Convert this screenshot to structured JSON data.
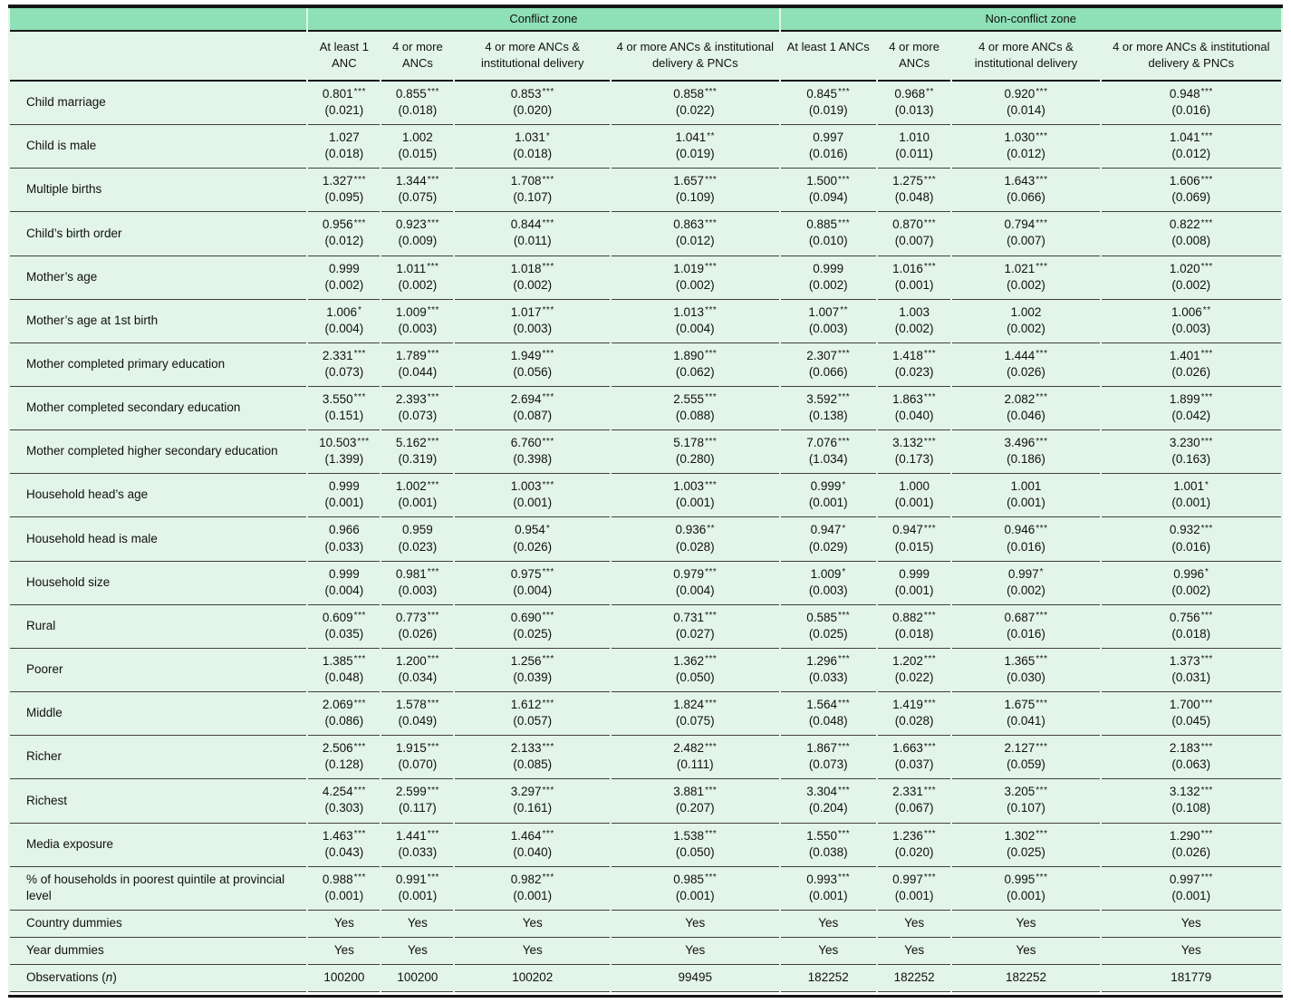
{
  "table": {
    "colors": {
      "band": "#8ee0b6",
      "cell": "#e3f4e9"
    },
    "zone_headers": [
      {
        "label": "Conflict zone",
        "span": 4
      },
      {
        "label": "Non-conflict zone",
        "span": 4
      }
    ],
    "column_headers": [
      "At least 1 ANC",
      "4 or more ANCs",
      "4 or more ANCs & institutional delivery",
      "4 or more ANCs & institutional delivery & PNCs",
      "At least 1 ANCs",
      "4 or more ANCs",
      "4 or more ANCs & institutional delivery",
      "4 or more ANCs & institutional delivery & PNCs"
    ],
    "rows": [
      {
        "label": "Child marriage",
        "cells": [
          {
            "v": "0.801***",
            "se": "(0.021)"
          },
          {
            "v": "0.855***",
            "se": "(0.018)"
          },
          {
            "v": "0.853***",
            "se": "(0.020)"
          },
          {
            "v": "0.858***",
            "se": "(0.022)"
          },
          {
            "v": "0.845***",
            "se": "(0.019)"
          },
          {
            "v": "0.968**",
            "se": "(0.013)"
          },
          {
            "v": "0.920***",
            "se": "(0.014)"
          },
          {
            "v": "0.948***",
            "se": "(0.016)"
          }
        ]
      },
      {
        "label": "Child is male",
        "cells": [
          {
            "v": "1.027",
            "se": "(0.018)"
          },
          {
            "v": "1.002",
            "se": "(0.015)"
          },
          {
            "v": "1.031*",
            "se": "(0.018)"
          },
          {
            "v": "1.041**",
            "se": "(0.019)"
          },
          {
            "v": "0.997",
            "se": "(0.016)"
          },
          {
            "v": "1.010",
            "se": "(0.011)"
          },
          {
            "v": "1.030***",
            "se": "(0.012)"
          },
          {
            "v": "1.041***",
            "se": "(0.012)"
          }
        ]
      },
      {
        "label": "Multiple births",
        "cells": [
          {
            "v": "1.327***",
            "se": "(0.095)"
          },
          {
            "v": "1.344***",
            "se": "(0.075)"
          },
          {
            "v": "1.708***",
            "se": "(0.107)"
          },
          {
            "v": "1.657***",
            "se": "(0.109)"
          },
          {
            "v": "1.500***",
            "se": "(0.094)"
          },
          {
            "v": "1.275***",
            "se": "(0.048)"
          },
          {
            "v": "1.643***",
            "se": "(0.066)"
          },
          {
            "v": "1.606***",
            "se": "(0.069)"
          }
        ]
      },
      {
        "label": "Child’s birth order",
        "cells": [
          {
            "v": "0.956***",
            "se": "(0.012)"
          },
          {
            "v": "0.923***",
            "se": "(0.009)"
          },
          {
            "v": "0.844***",
            "se": "(0.011)"
          },
          {
            "v": "0.863***",
            "se": "(0.012)"
          },
          {
            "v": "0.885***",
            "se": "(0.010)"
          },
          {
            "v": "0.870***",
            "se": "(0.007)"
          },
          {
            "v": "0.794***",
            "se": "(0.007)"
          },
          {
            "v": "0.822***",
            "se": "(0.008)"
          }
        ]
      },
      {
        "label": "Mother’s age",
        "cells": [
          {
            "v": "0.999",
            "se": "(0.002)"
          },
          {
            "v": "1.011***",
            "se": "(0.002)"
          },
          {
            "v": "1.018***",
            "se": "(0.002)"
          },
          {
            "v": "1.019***",
            "se": "(0.002)"
          },
          {
            "v": "0.999",
            "se": "(0.002)"
          },
          {
            "v": "1.016***",
            "se": "(0.001)"
          },
          {
            "v": "1.021***",
            "se": "(0.002)"
          },
          {
            "v": "1.020***",
            "se": "(0.002)"
          }
        ]
      },
      {
        "label": "Mother’s age at 1st birth",
        "cells": [
          {
            "v": "1.006*",
            "se": "(0.004)"
          },
          {
            "v": "1.009***",
            "se": "(0.003)"
          },
          {
            "v": "1.017***",
            "se": "(0.003)"
          },
          {
            "v": "1.013***",
            "se": "(0.004)"
          },
          {
            "v": "1.007**",
            "se": "(0.003)"
          },
          {
            "v": "1.003",
            "se": "(0.002)"
          },
          {
            "v": "1.002",
            "se": "(0.002)"
          },
          {
            "v": "1.006**",
            "se": "(0.003)"
          }
        ]
      },
      {
        "label": "Mother completed primary education",
        "cells": [
          {
            "v": "2.331***",
            "se": "(0.073)"
          },
          {
            "v": "1.789***",
            "se": "(0.044)"
          },
          {
            "v": "1.949***",
            "se": "(0.056)"
          },
          {
            "v": "1.890***",
            "se": "(0.062)"
          },
          {
            "v": "2.307***",
            "se": "(0.066)"
          },
          {
            "v": "1.418***",
            "se": "(0.023)"
          },
          {
            "v": "1.444***",
            "se": "(0.026)"
          },
          {
            "v": "1.401***",
            "se": "(0.026)"
          }
        ]
      },
      {
        "label": "Mother completed secondary education",
        "cells": [
          {
            "v": "3.550***",
            "se": "(0.151)"
          },
          {
            "v": "2.393***",
            "se": "(0.073)"
          },
          {
            "v": "2.694***",
            "se": "(0.087)"
          },
          {
            "v": "2.555***",
            "se": "(0.088)"
          },
          {
            "v": "3.592***",
            "se": "(0.138)"
          },
          {
            "v": "1.863***",
            "se": "(0.040)"
          },
          {
            "v": "2.082***",
            "se": "(0.046)"
          },
          {
            "v": "1.899***",
            "se": "(0.042)"
          }
        ]
      },
      {
        "label": "Mother completed higher secondary education",
        "cells": [
          {
            "v": "10.503***",
            "se": "(1.399)"
          },
          {
            "v": "5.162***",
            "se": "(0.319)"
          },
          {
            "v": "6.760***",
            "se": "(0.398)"
          },
          {
            "v": "5.178***",
            "se": "(0.280)"
          },
          {
            "v": "7.076***",
            "se": "(1.034)"
          },
          {
            "v": "3.132***",
            "se": "(0.173)"
          },
          {
            "v": "3.496***",
            "se": "(0.186)"
          },
          {
            "v": "3.230***",
            "se": "(0.163)"
          }
        ]
      },
      {
        "label": "Household head’s age",
        "cells": [
          {
            "v": "0.999",
            "se": "(0.001)"
          },
          {
            "v": "1.002***",
            "se": "(0.001)"
          },
          {
            "v": "1.003***",
            "se": "(0.001)"
          },
          {
            "v": "1.003***",
            "se": "(0.001)"
          },
          {
            "v": "0.999*",
            "se": "(0.001)"
          },
          {
            "v": "1.000",
            "se": "(0.001)"
          },
          {
            "v": "1.001",
            "se": "(0.001)"
          },
          {
            "v": "1.001*",
            "se": "(0.001)"
          }
        ]
      },
      {
        "label": "Household head is male",
        "cells": [
          {
            "v": "0.966",
            "se": "(0.033)"
          },
          {
            "v": "0.959",
            "se": "(0.023)"
          },
          {
            "v": "0.954*",
            "se": "(0.026)"
          },
          {
            "v": "0.936**",
            "se": "(0.028)"
          },
          {
            "v": "0.947*",
            "se": "(0.029)"
          },
          {
            "v": "0.947***",
            "se": "(0.015)"
          },
          {
            "v": "0.946***",
            "se": "(0.016)"
          },
          {
            "v": "0.932***",
            "se": "(0.016)"
          }
        ]
      },
      {
        "label": "Household size",
        "cells": [
          {
            "v": "0.999",
            "se": "(0.004)"
          },
          {
            "v": "0.981***",
            "se": "(0.003)"
          },
          {
            "v": "0.975***",
            "se": "(0.004)"
          },
          {
            "v": "0.979***",
            "se": "(0.004)"
          },
          {
            "v": "1.009*",
            "se": "(0.003)"
          },
          {
            "v": "0.999",
            "se": "(0.001)"
          },
          {
            "v": "0.997*",
            "se": "(0.002)"
          },
          {
            "v": "0.996*",
            "se": "(0.002)"
          }
        ]
      },
      {
        "label": "Rural",
        "cells": [
          {
            "v": "0.609***",
            "se": "(0.035)"
          },
          {
            "v": "0.773***",
            "se": "(0.026)"
          },
          {
            "v": "0.690***",
            "se": "(0.025)"
          },
          {
            "v": "0.731***",
            "se": "(0.027)"
          },
          {
            "v": "0.585***",
            "se": "(0.025)"
          },
          {
            "v": "0.882***",
            "se": "(0.018)"
          },
          {
            "v": "0.687***",
            "se": "(0.016)"
          },
          {
            "v": "0.756***",
            "se": "(0.018)"
          }
        ]
      },
      {
        "label": "Poorer",
        "cells": [
          {
            "v": "1.385***",
            "se": "(0.048)"
          },
          {
            "v": "1.200***",
            "se": "(0.034)"
          },
          {
            "v": "1.256***",
            "se": "(0.039)"
          },
          {
            "v": "1.362***",
            "se": "(0.050)"
          },
          {
            "v": "1.296***",
            "se": "(0.033)"
          },
          {
            "v": "1.202***",
            "se": "(0.022)"
          },
          {
            "v": "1.365***",
            "se": "(0.030)"
          },
          {
            "v": "1.373***",
            "se": "(0.031)"
          }
        ]
      },
      {
        "label": "Middle",
        "cells": [
          {
            "v": "2.069***",
            "se": "(0.086)"
          },
          {
            "v": "1.578***",
            "se": "(0.049)"
          },
          {
            "v": "1.612***",
            "se": "(0.057)"
          },
          {
            "v": "1.824***",
            "se": "(0.075)"
          },
          {
            "v": "1.564***",
            "se": "(0.048)"
          },
          {
            "v": "1.419***",
            "se": "(0.028)"
          },
          {
            "v": "1.675***",
            "se": "(0.041)"
          },
          {
            "v": "1.700***",
            "se": "(0.045)"
          }
        ]
      },
      {
        "label": "Richer",
        "cells": [
          {
            "v": "2.506***",
            "se": "(0.128)"
          },
          {
            "v": "1.915***",
            "se": "(0.070)"
          },
          {
            "v": "2.133***",
            "se": "(0.085)"
          },
          {
            "v": "2.482***",
            "se": "(0.111)"
          },
          {
            "v": "1.867***",
            "se": "(0.073)"
          },
          {
            "v": "1.663***",
            "se": "(0.037)"
          },
          {
            "v": "2.127***",
            "se": "(0.059)"
          },
          {
            "v": "2.183***",
            "se": "(0.063)"
          }
        ]
      },
      {
        "label": "Richest",
        "cells": [
          {
            "v": "4.254***",
            "se": "(0.303)"
          },
          {
            "v": "2.599***",
            "se": "(0.117)"
          },
          {
            "v": "3.297***",
            "se": "(0.161)"
          },
          {
            "v": "3.881***",
            "se": "(0.207)"
          },
          {
            "v": "3.304***",
            "se": "(0.204)"
          },
          {
            "v": "2.331***",
            "se": "(0.067)"
          },
          {
            "v": "3.205***",
            "se": "(0.107)"
          },
          {
            "v": "3.132***",
            "se": "(0.108)"
          }
        ]
      },
      {
        "label": "Media exposure",
        "cells": [
          {
            "v": "1.463***",
            "se": "(0.043)"
          },
          {
            "v": "1.441***",
            "se": "(0.033)"
          },
          {
            "v": "1.464***",
            "se": "(0.040)"
          },
          {
            "v": "1.538***",
            "se": "(0.050)"
          },
          {
            "v": "1.550***",
            "se": "(0.038)"
          },
          {
            "v": "1.236***",
            "se": "(0.020)"
          },
          {
            "v": "1.302***",
            "se": "(0.025)"
          },
          {
            "v": "1.290***",
            "se": "(0.026)"
          }
        ]
      },
      {
        "label": "% of households in poorest quintile at provincial level",
        "cells": [
          {
            "v": "0.988***",
            "se": "(0.001)"
          },
          {
            "v": "0.991***",
            "se": "(0.001)"
          },
          {
            "v": "0.982***",
            "se": "(0.001)"
          },
          {
            "v": "0.985***",
            "se": "(0.001)"
          },
          {
            "v": "0.993***",
            "se": "(0.001)"
          },
          {
            "v": "0.997***",
            "se": "(0.001)"
          },
          {
            "v": "0.995***",
            "se": "(0.001)"
          },
          {
            "v": "0.997***",
            "se": "(0.001)"
          }
        ]
      },
      {
        "label": "Country dummies",
        "cells": [
          {
            "v": "Yes"
          },
          {
            "v": "Yes"
          },
          {
            "v": "Yes"
          },
          {
            "v": "Yes"
          },
          {
            "v": "Yes"
          },
          {
            "v": "Yes"
          },
          {
            "v": "Yes"
          },
          {
            "v": "Yes"
          }
        ]
      },
      {
        "label": "Year dummies",
        "cells": [
          {
            "v": "Yes"
          },
          {
            "v": "Yes"
          },
          {
            "v": "Yes"
          },
          {
            "v": "Yes"
          },
          {
            "v": "Yes"
          },
          {
            "v": "Yes"
          },
          {
            "v": "Yes"
          },
          {
            "v": "Yes"
          }
        ]
      },
      {
        "label": "Observations (n)",
        "cells": [
          {
            "v": "100200"
          },
          {
            "v": "100200"
          },
          {
            "v": "100202"
          },
          {
            "v": "99495"
          },
          {
            "v": "182252"
          },
          {
            "v": "182252"
          },
          {
            "v": "182252"
          },
          {
            "v": "181779"
          }
        ]
      }
    ]
  }
}
